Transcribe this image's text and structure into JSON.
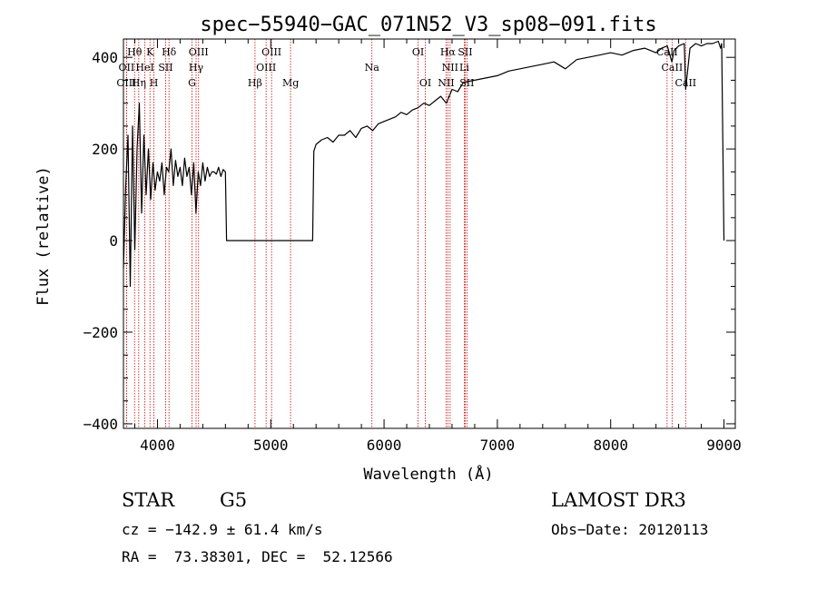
{
  "chart_data": {
    "type": "line",
    "title": "spec−55940−GAC_071N52_V3_sp08−091.fits",
    "xlabel": "Wavelength (Å)",
    "ylabel": "Flux (relative)",
    "xlim": [
      3700,
      9100
    ],
    "ylim": [
      -410,
      440
    ],
    "xticks": [
      4000,
      5000,
      6000,
      7000,
      8000,
      9000
    ],
    "yticks": [
      -400,
      -200,
      0,
      200,
      400
    ],
    "ytick_labels": [
      "−400",
      "−200",
      "0",
      "200",
      "400"
    ],
    "grid": false,
    "legend": "none",
    "line_color": "#000000",
    "marker_color": "#cc0000",
    "series": [
      {
        "x": [
          3700,
          3720,
          3740,
          3760,
          3780,
          3800,
          3820,
          3840,
          3860,
          3880,
          3900,
          3920,
          3940,
          3960,
          3980,
          4000,
          4020,
          4040,
          4060,
          4080,
          4100,
          4120,
          4140,
          4160,
          4180,
          4200,
          4220,
          4240,
          4260,
          4280,
          4300,
          4320,
          4340,
          4360,
          4380,
          4400,
          4420,
          4440,
          4460,
          4480,
          4500,
          4520,
          4540,
          4560,
          4580,
          4600,
          4610,
          4620,
          4700,
          4800,
          5000,
          5200,
          5370,
          5380,
          5400,
          5450,
          5500,
          5550,
          5600,
          5650,
          5700,
          5750,
          5800,
          5850,
          5900,
          5950,
          6000,
          6050,
          6100,
          6150,
          6200,
          6250,
          6300,
          6350,
          6400,
          6450,
          6500,
          6550,
          6600,
          6650,
          6700,
          6800,
          6900,
          7000,
          7100,
          7200,
          7300,
          7400,
          7500,
          7600,
          7700,
          7800,
          7900,
          8000,
          8100,
          8200,
          8300,
          8400,
          8450,
          8500,
          8540,
          8560,
          8600,
          8650,
          8662,
          8700,
          8750,
          8800,
          8850,
          8900,
          8950,
          8970,
          8980,
          9000
        ],
        "y": [
          -60,
          120,
          230,
          -100,
          250,
          -20,
          200,
          300,
          60,
          230,
          100,
          200,
          90,
          170,
          110,
          150,
          130,
          170,
          100,
          160,
          150,
          200,
          120,
          175,
          140,
          160,
          120,
          180,
          140,
          160,
          100,
          170,
          60,
          150,
          120,
          170,
          130,
          160,
          140,
          150,
          150,
          145,
          160,
          140,
          155,
          150,
          0,
          0,
          0,
          0,
          0,
          0,
          0,
          195,
          210,
          220,
          225,
          215,
          230,
          230,
          240,
          225,
          245,
          250,
          240,
          255,
          260,
          265,
          270,
          280,
          275,
          285,
          290,
          300,
          295,
          305,
          315,
          300,
          330,
          325,
          345,
          350,
          355,
          360,
          370,
          375,
          380,
          385,
          390,
          375,
          395,
          400,
          405,
          410,
          405,
          415,
          420,
          410,
          420,
          425,
          390,
          415,
          425,
          430,
          330,
          420,
          430,
          425,
          430,
          430,
          435,
          420,
          430,
          0
        ]
      }
    ],
    "spectral_lines": [
      {
        "name": "Hθ",
        "x": 3798,
        "row": 0
      },
      {
        "name": "OII",
        "x": 3727,
        "row": 1
      },
      {
        "name": "OIII",
        "x": 3727,
        "row": 2
      },
      {
        "name": "K",
        "x": 3934,
        "row": 0
      },
      {
        "name": "HeI",
        "x": 3889,
        "row": 1
      },
      {
        "name": "Hη",
        "x": 3835,
        "row": 2
      },
      {
        "name": "H",
        "x": 3969,
        "row": 2
      },
      {
        "name": "SII",
        "x": 4072,
        "row": 1
      },
      {
        "name": "Hδ",
        "x": 4102,
        "row": 0
      },
      {
        "name": "OIII",
        "x": 4363,
        "row": 0
      },
      {
        "name": "Hγ",
        "x": 4341,
        "row": 1
      },
      {
        "name": "G",
        "x": 4305,
        "row": 2
      },
      {
        "name": "OIII",
        "x": 5007,
        "row": 0
      },
      {
        "name": "OIII",
        "x": 4959,
        "row": 1
      },
      {
        "name": "Hβ",
        "x": 4861,
        "row": 2
      },
      {
        "name": "Mg",
        "x": 5175,
        "row": 2
      },
      {
        "name": "Na",
        "x": 5893,
        "row": 1
      },
      {
        "name": "OI",
        "x": 6300,
        "row": 0
      },
      {
        "name": "OI",
        "x": 6364,
        "row": 2
      },
      {
        "name": "Hα",
        "x": 6563,
        "row": 0
      },
      {
        "name": "SII",
        "x": 6716,
        "row": 0
      },
      {
        "name": "NII",
        "x": 6583,
        "row": 1
      },
      {
        "name": "Li",
        "x": 6708,
        "row": 1
      },
      {
        "name": "NII",
        "x": 6548,
        "row": 2
      },
      {
        "name": "SII",
        "x": 6731,
        "row": 2
      },
      {
        "name": "CaII",
        "x": 8498,
        "row": 0
      },
      {
        "name": "CaII",
        "x": 8542,
        "row": 1
      },
      {
        "name": "CaII",
        "x": 8662,
        "row": 2
      }
    ]
  },
  "info": {
    "class": "STAR",
    "subclass": "G5",
    "survey": "LAMOST DR3",
    "cz": "cz = −142.9 ± 61.4 km/s",
    "obs_date": "Obs−Date: 20120113",
    "radec": "RA =  73.38301, DEC =  52.12566"
  }
}
